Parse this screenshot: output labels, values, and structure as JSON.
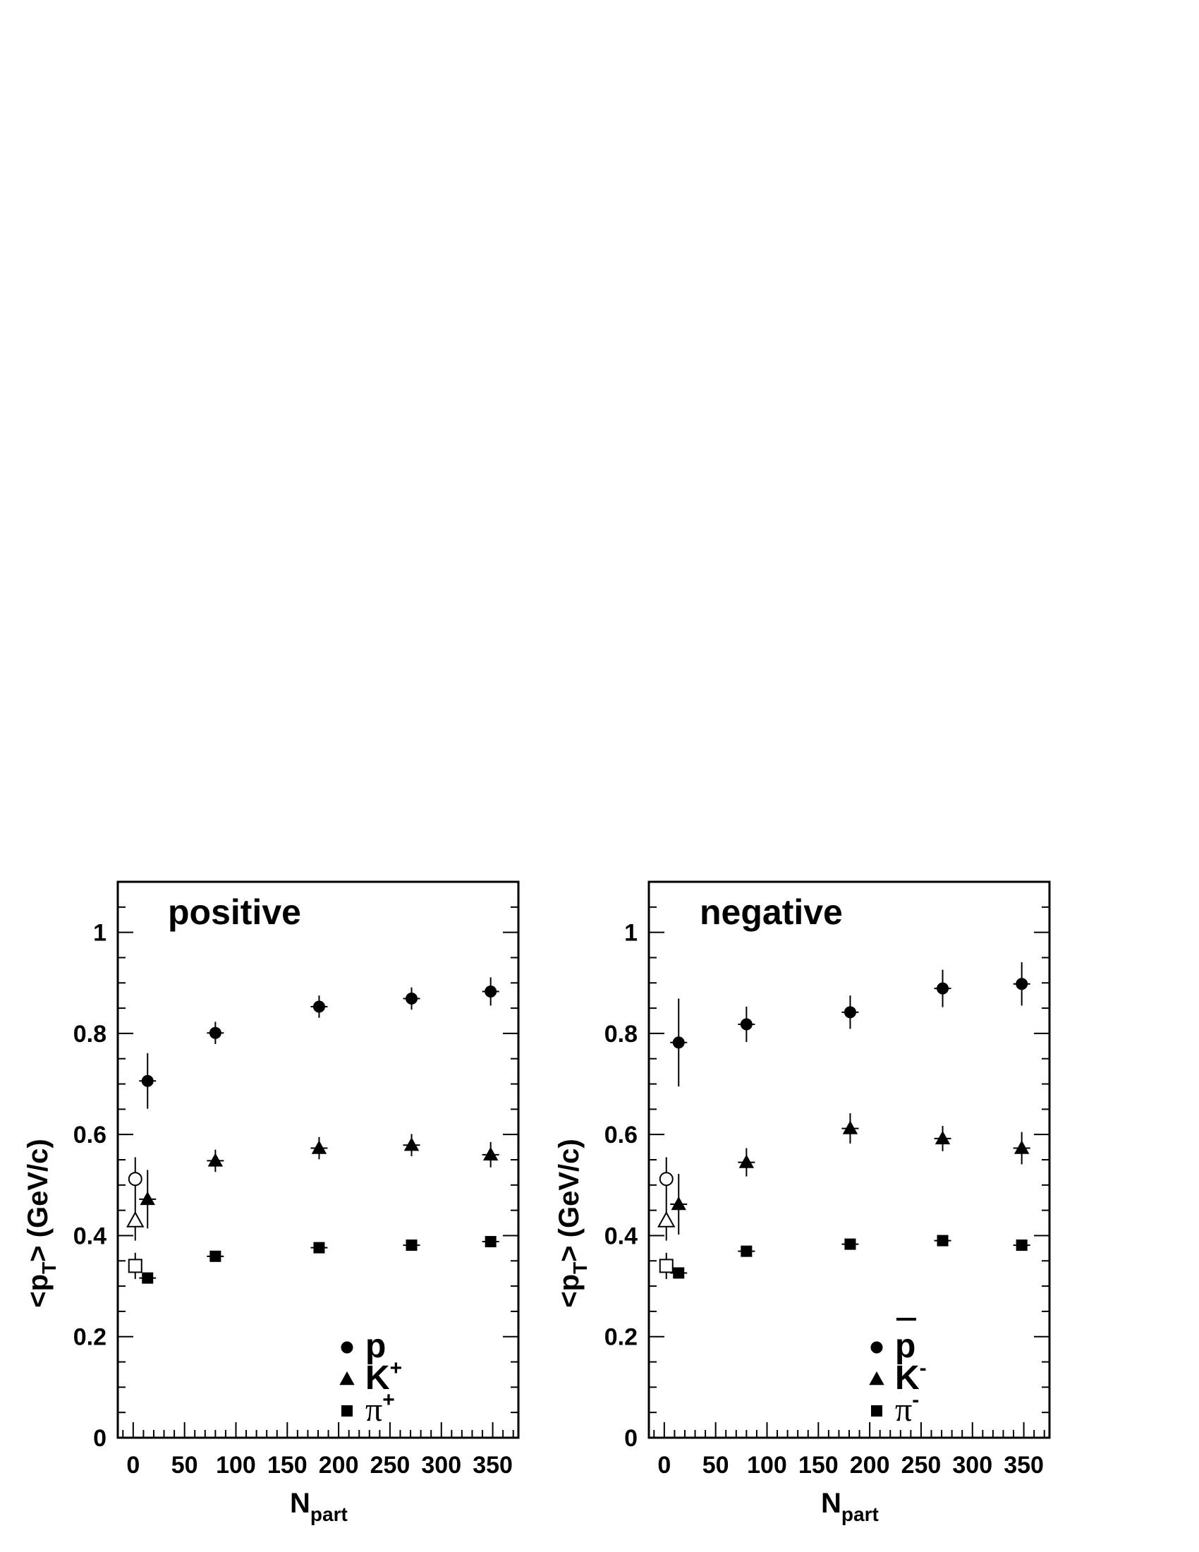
{
  "chart_data": [
    {
      "type": "scatter",
      "title": "positive",
      "xlabel": {
        "main": "N",
        "sub": "part"
      },
      "ylabel": {
        "pre": "<p",
        "sub": "T",
        "post": "> (GeV/c)"
      },
      "xlim": [
        -15,
        375
      ],
      "ylim": [
        0,
        1.1
      ],
      "xticks": [
        0,
        50,
        100,
        150,
        200,
        250,
        300,
        350
      ],
      "yticks": [
        0,
        0.2,
        0.4,
        0.6,
        0.8,
        1
      ],
      "ytick_labels": [
        "0",
        "0.2",
        "0.4",
        "0.6",
        "0.8",
        "1"
      ],
      "series": [
        {
          "legend_base": "p",
          "legend_sup": "",
          "overline": false,
          "greek": false,
          "marker": "circle",
          "points": [
            {
              "x": 14,
              "y": 0.706,
              "err": 0.055
            },
            {
              "x": 80,
              "y": 0.801,
              "err": 0.022
            },
            {
              "x": 181,
              "y": 0.853,
              "err": 0.022
            },
            {
              "x": 271,
              "y": 0.869,
              "err": 0.022
            },
            {
              "x": 348,
              "y": 0.883,
              "err": 0.028
            }
          ]
        },
        {
          "legend_base": "K",
          "legend_sup": "+",
          "overline": false,
          "greek": false,
          "marker": "triangle",
          "points": [
            {
              "x": 14,
              "y": 0.472,
              "err": 0.058
            },
            {
              "x": 80,
              "y": 0.548,
              "err": 0.022
            },
            {
              "x": 181,
              "y": 0.573,
              "err": 0.022
            },
            {
              "x": 271,
              "y": 0.579,
              "err": 0.022
            },
            {
              "x": 348,
              "y": 0.56,
              "err": 0.025
            }
          ]
        },
        {
          "legend_base": "π",
          "legend_sup": "+",
          "overline": false,
          "greek": true,
          "marker": "square",
          "points": [
            {
              "x": 14,
              "y": 0.316,
              "err": 0.008
            },
            {
              "x": 80,
              "y": 0.359,
              "err": 0.006
            },
            {
              "x": 181,
              "y": 0.376,
              "err": 0.006
            },
            {
              "x": 271,
              "y": 0.381,
              "err": 0.006
            },
            {
              "x": 348,
              "y": 0.388,
              "err": 0.006
            }
          ]
        }
      ],
      "reference_points": [
        {
          "marker": "circle",
          "x": 2,
          "y": 0.512,
          "err": 0.043
        },
        {
          "marker": "triangle",
          "x": 2,
          "y": 0.43,
          "err": 0.04
        },
        {
          "marker": "square",
          "x": 2,
          "y": 0.34,
          "err": 0.026
        }
      ]
    },
    {
      "type": "scatter",
      "title": "negative",
      "xlabel": {
        "main": "N",
        "sub": "part"
      },
      "ylabel": {
        "pre": "<p",
        "sub": "T",
        "post": "> (GeV/c)"
      },
      "xlim": [
        -15,
        375
      ],
      "ylim": [
        0,
        1.1
      ],
      "xticks": [
        0,
        50,
        100,
        150,
        200,
        250,
        300,
        350
      ],
      "yticks": [
        0,
        0.2,
        0.4,
        0.6,
        0.8,
        1
      ],
      "ytick_labels": [
        "0",
        "0.2",
        "0.4",
        "0.6",
        "0.8",
        "1"
      ],
      "series": [
        {
          "legend_base": "p",
          "legend_sup": "",
          "overline": true,
          "greek": false,
          "marker": "circle",
          "points": [
            {
              "x": 14,
              "y": 0.782,
              "err": 0.087
            },
            {
              "x": 80,
              "y": 0.818,
              "err": 0.035
            },
            {
              "x": 181,
              "y": 0.842,
              "err": 0.033
            },
            {
              "x": 271,
              "y": 0.889,
              "err": 0.037
            },
            {
              "x": 348,
              "y": 0.898,
              "err": 0.043
            }
          ]
        },
        {
          "legend_base": "K",
          "legend_sup": "-",
          "overline": false,
          "greek": false,
          "marker": "triangle",
          "points": [
            {
              "x": 14,
              "y": 0.462,
              "err": 0.06
            },
            {
              "x": 80,
              "y": 0.545,
              "err": 0.028
            },
            {
              "x": 181,
              "y": 0.612,
              "err": 0.03
            },
            {
              "x": 271,
              "y": 0.592,
              "err": 0.025
            },
            {
              "x": 348,
              "y": 0.573,
              "err": 0.032
            }
          ]
        },
        {
          "legend_base": "π",
          "legend_sup": "-",
          "overline": false,
          "greek": true,
          "marker": "square",
          "points": [
            {
              "x": 14,
              "y": 0.326,
              "err": 0.008
            },
            {
              "x": 80,
              "y": 0.369,
              "err": 0.006
            },
            {
              "x": 181,
              "y": 0.383,
              "err": 0.006
            },
            {
              "x": 271,
              "y": 0.39,
              "err": 0.006
            },
            {
              "x": 348,
              "y": 0.381,
              "err": 0.006
            }
          ]
        }
      ],
      "reference_points": [
        {
          "marker": "circle",
          "x": 2,
          "y": 0.512,
          "err": 0.043
        },
        {
          "marker": "triangle",
          "x": 2,
          "y": 0.43,
          "err": 0.04
        },
        {
          "marker": "square",
          "x": 2,
          "y": 0.34,
          "err": 0.026
        }
      ]
    }
  ]
}
